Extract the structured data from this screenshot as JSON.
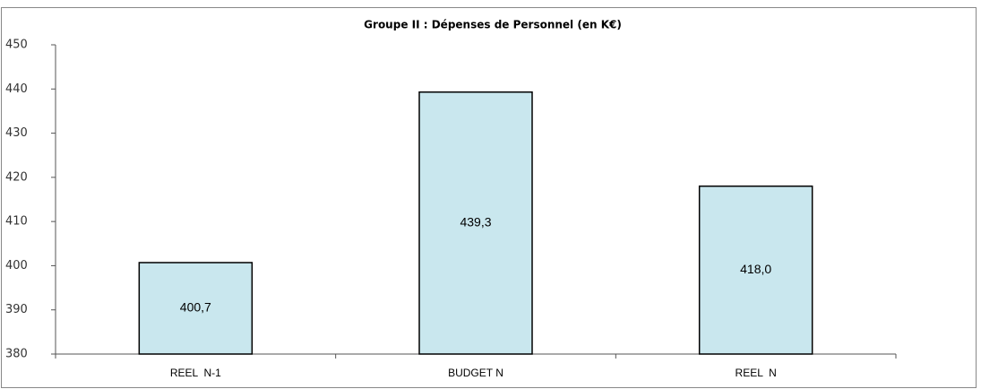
{
  "chart_data": {
    "type": "bar",
    "title": "Groupe II : Dépenses de Personnel (en K€)",
    "categories": [
      "REEL  N-1",
      "BUDGET N",
      "REEL  N"
    ],
    "values": [
      400.7,
      439.3,
      418.0
    ],
    "value_labels": [
      "400,7",
      "439,3",
      "418,0"
    ],
    "color": "#c9e7ee",
    "ylim": [
      380,
      450
    ],
    "yticks": [
      380,
      390,
      400,
      410,
      420,
      430,
      440,
      450
    ],
    "grid": false
  }
}
